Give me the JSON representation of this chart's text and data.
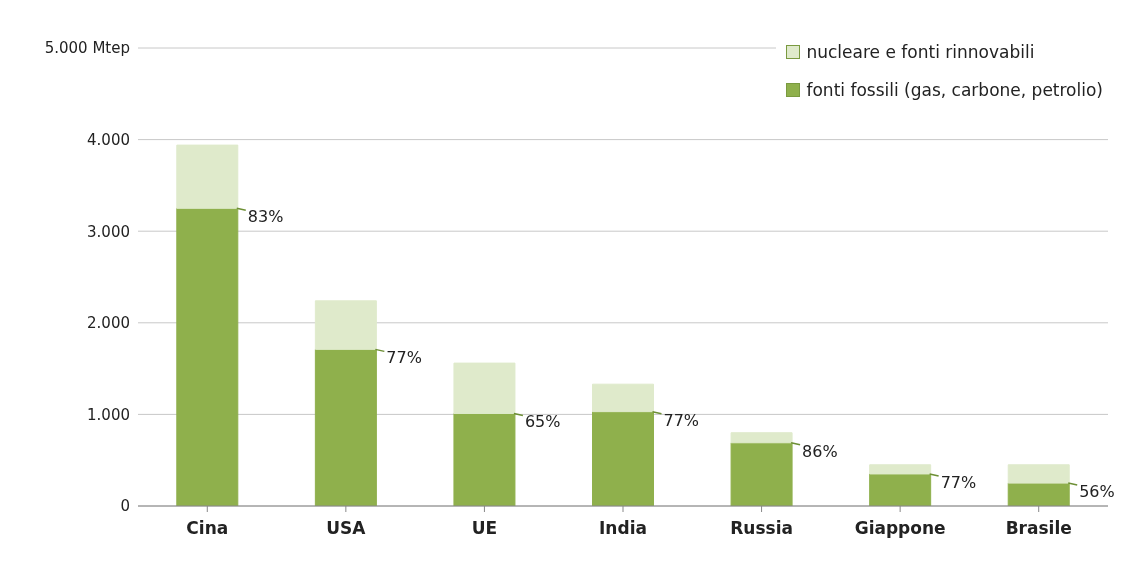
{
  "chart_data": {
    "type": "bar",
    "stacked": true,
    "categories": [
      "Cina",
      "USA",
      "UE",
      "India",
      "Russia",
      "Giappone",
      "Brasile"
    ],
    "series": [
      {
        "name": "fonti fossili (gas, carbone, petrolio)",
        "color": "#8fb04c",
        "values": [
          3250,
          1710,
          1010,
          1030,
          690,
          350,
          250
        ]
      },
      {
        "name": "nucleare e fonti rinnovabili",
        "color": "#dfeacb",
        "values": [
          690,
          530,
          550,
          300,
          110,
          100,
          200
        ]
      }
    ],
    "annotations": [
      {
        "text": "83%",
        "x": "Cina",
        "y": 3250
      },
      {
        "text": "77%",
        "x": "USA",
        "y": 1710
      },
      {
        "text": "65%",
        "x": "UE",
        "y": 1010
      },
      {
        "text": "77%",
        "x": "India",
        "y": 1030
      },
      {
        "text": "86%",
        "x": "Russia",
        "y": 690
      },
      {
        "text": "77%",
        "x": "Giappone",
        "y": 350
      },
      {
        "text": "56%",
        "x": "Brasile",
        "y": 250
      }
    ],
    "ylim": [
      0,
      5000
    ],
    "yticks": [
      0,
      {
        "value": 1000,
        "label": "1.000"
      },
      {
        "value": 2000,
        "label": "2.000"
      },
      {
        "value": 3000,
        "label": "3.000"
      },
      {
        "value": 4000,
        "label": "4.000"
      },
      {
        "value": 5000,
        "label": "5.000 Mtep"
      }
    ],
    "grid": "y",
    "legend": "top right"
  }
}
